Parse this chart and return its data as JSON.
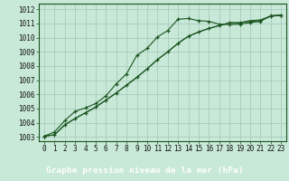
{
  "title": "Graphe pression niveau de la mer (hPa)",
  "bg_color": "#c8e8d8",
  "plot_bg_color": "#c8e8d8",
  "bottom_bar_color": "#2a6b3a",
  "line_color": "#1a5520",
  "grid_color": "#a8ccbc",
  "x_ticks": [
    0,
    1,
    2,
    3,
    4,
    5,
    6,
    7,
    8,
    9,
    10,
    11,
    12,
    13,
    14,
    15,
    16,
    17,
    18,
    19,
    20,
    21,
    22,
    23
  ],
  "y_ticks": [
    1003,
    1004,
    1005,
    1006,
    1007,
    1008,
    1009,
    1010,
    1011,
    1012
  ],
  "y_min": 1002.7,
  "y_max": 1012.4,
  "line1": [
    1003.05,
    1003.35,
    1004.15,
    1004.8,
    1005.05,
    1005.35,
    1005.9,
    1006.75,
    1007.45,
    1008.75,
    1009.25,
    1010.05,
    1010.5,
    1011.3,
    1011.35,
    1011.2,
    1011.15,
    1010.95,
    1010.92,
    1010.95,
    1011.05,
    1011.15,
    1011.55,
    1011.6
  ],
  "line2": [
    1003.05,
    1003.15,
    1003.85,
    1004.3,
    1004.7,
    1005.1,
    1005.6,
    1006.1,
    1006.65,
    1007.2,
    1007.8,
    1008.45,
    1009.0,
    1009.6,
    1010.1,
    1010.4,
    1010.65,
    1010.85,
    1011.05,
    1011.05,
    1011.15,
    1011.2,
    1011.5,
    1011.58
  ],
  "line3": [
    1003.05,
    1003.15,
    1003.85,
    1004.3,
    1004.7,
    1005.1,
    1005.6,
    1006.1,
    1006.65,
    1007.2,
    1007.8,
    1008.45,
    1009.0,
    1009.6,
    1010.1,
    1010.4,
    1010.65,
    1010.85,
    1011.05,
    1011.05,
    1011.2,
    1011.25,
    1011.52,
    1011.6
  ],
  "tick_fontsize": 5.5,
  "label_fontsize": 6.8
}
